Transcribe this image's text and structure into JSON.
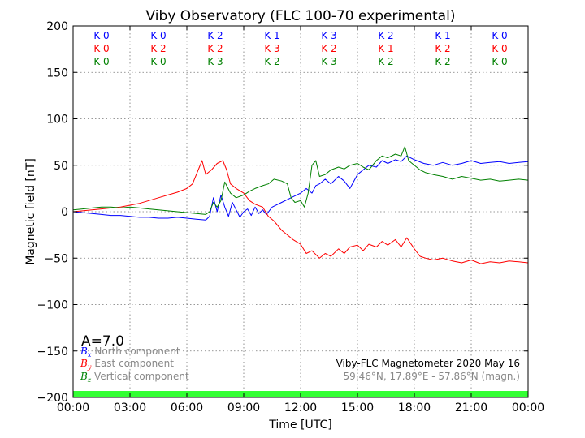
{
  "chart_data": {
    "type": "line",
    "title": "Viby Observatory (FLC 100-70 experimental)",
    "xlabel": "Time [UTC]",
    "ylabel": "Magnetic field [nT]",
    "xlim": [
      0,
      24
    ],
    "ylim": [
      -200,
      200
    ],
    "x_tick_labels": [
      "00:00",
      "03:00",
      "06:00",
      "09:00",
      "12:00",
      "15:00",
      "18:00",
      "21:00",
      "00:00"
    ],
    "y_ticks": [
      -200,
      -150,
      -100,
      -50,
      0,
      50,
      100,
      150,
      200
    ],
    "y_tick_labels": [
      "−200",
      "−150",
      "−100",
      "−50",
      "0",
      "50",
      "100",
      "150",
      "200"
    ],
    "grid": true,
    "k_indices": {
      "labels": [
        [
          "K 0",
          "K 0",
          "K 2",
          "K 1",
          "K 3",
          "K 2",
          "K 1",
          "K 0"
        ],
        [
          "K 0",
          "K 2",
          "K 2",
          "K 3",
          "K 2",
          "K 1",
          "K 2",
          "K 0"
        ],
        [
          "K 0",
          "K 0",
          "K 3",
          "K 2",
          "K 3",
          "K 2",
          "K 2",
          "K 0"
        ]
      ]
    },
    "a_index_label": "A=7.0",
    "legend": {
      "placement": "bottom-left",
      "entries": [
        {
          "symbol": "B",
          "sub": "x",
          "text": "North component"
        },
        {
          "symbol": "B",
          "sub": "y",
          "text": "East component"
        },
        {
          "symbol": "B",
          "sub": "z",
          "text": "Vertical component"
        }
      ]
    },
    "info_line1": "Viby-FLC Magnetometer 2020 May 16",
    "info_line2": "59.46°N, 17.89°E - 57.86°N (magn.)",
    "series": [
      {
        "name": "North component",
        "color": "#0000ff",
        "x": [
          0,
          0.5,
          1,
          1.5,
          2,
          2.5,
          3,
          3.5,
          4,
          4.5,
          5,
          5.5,
          6,
          6.5,
          7,
          7.2,
          7.4,
          7.6,
          7.8,
          8,
          8.2,
          8.4,
          8.6,
          8.8,
          9,
          9.2,
          9.4,
          9.6,
          9.8,
          10,
          10.2,
          10.5,
          11,
          11.5,
          12,
          12.3,
          12.6,
          12.8,
          13,
          13.3,
          13.6,
          14,
          14.3,
          14.6,
          15,
          15.3,
          15.6,
          16,
          16.3,
          16.6,
          17,
          17.3,
          17.6,
          18,
          18.5,
          19,
          19.5,
          20,
          20.5,
          21,
          21.5,
          22,
          22.5,
          23,
          23.5,
          24
        ],
        "values": [
          0,
          -1,
          -2,
          -3,
          -4,
          -4,
          -5,
          -6,
          -6,
          -7,
          -7,
          -6,
          -7,
          -8,
          -9,
          -5,
          15,
          0,
          18,
          5,
          -5,
          10,
          2,
          -6,
          0,
          3,
          -4,
          5,
          -2,
          2,
          -3,
          5,
          10,
          15,
          20,
          25,
          20,
          28,
          30,
          35,
          30,
          38,
          33,
          25,
          40,
          45,
          50,
          48,
          55,
          52,
          56,
          54,
          60,
          56,
          52,
          50,
          53,
          50,
          52,
          55,
          52,
          53,
          54,
          52,
          53,
          54
        ]
      },
      {
        "name": "East component",
        "color": "#ff0000",
        "x": [
          0,
          0.5,
          1,
          1.5,
          2,
          2.5,
          3,
          3.5,
          4,
          4.5,
          5,
          5.5,
          6,
          6.3,
          6.5,
          6.8,
          7,
          7.3,
          7.6,
          7.9,
          8.1,
          8.3,
          8.6,
          9,
          9.3,
          9.6,
          10,
          10.3,
          10.6,
          11,
          11.3,
          11.6,
          12,
          12.3,
          12.6,
          13,
          13.3,
          13.6,
          14,
          14.3,
          14.6,
          15,
          15.3,
          15.6,
          16,
          16.3,
          16.6,
          17,
          17.3,
          17.6,
          18,
          18.3,
          18.6,
          19,
          19.5,
          20,
          20.5,
          21,
          21.5,
          22,
          22.5,
          23,
          23.5,
          24
        ],
        "values": [
          0,
          1,
          2,
          3,
          4,
          5,
          7,
          9,
          12,
          15,
          18,
          21,
          25,
          30,
          40,
          55,
          40,
          45,
          52,
          55,
          45,
          30,
          25,
          20,
          12,
          8,
          5,
          -5,
          -10,
          -20,
          -25,
          -30,
          -35,
          -45,
          -42,
          -50,
          -45,
          -48,
          -40,
          -45,
          -38,
          -36,
          -42,
          -35,
          -38,
          -32,
          -36,
          -30,
          -38,
          -28,
          -40,
          -48,
          -50,
          -52,
          -50,
          -53,
          -55,
          -52,
          -56,
          -54,
          -55,
          -53,
          -54,
          -55
        ]
      },
      {
        "name": "Vertical component",
        "color": "#008000",
        "x": [
          0,
          0.5,
          1,
          1.5,
          2,
          2.5,
          3,
          3.5,
          4,
          4.5,
          5,
          5.5,
          6,
          6.5,
          7,
          7.2,
          7.4,
          7.6,
          7.8,
          8,
          8.3,
          8.6,
          9,
          9.3,
          9.6,
          10,
          10.3,
          10.6,
          11,
          11.3,
          11.5,
          11.7,
          12,
          12.2,
          12.4,
          12.6,
          12.8,
          13,
          13.3,
          13.6,
          14,
          14.3,
          14.6,
          15,
          15.3,
          15.6,
          16,
          16.3,
          16.6,
          17,
          17.3,
          17.5,
          17.7,
          18,
          18.3,
          18.6,
          19,
          19.5,
          20,
          20.5,
          21,
          21.5,
          22,
          22.5,
          23,
          23.5,
          24
        ],
        "values": [
          2,
          3,
          4,
          5,
          5,
          4,
          5,
          4,
          3,
          2,
          1,
          0,
          -1,
          -2,
          -3,
          0,
          10,
          5,
          12,
          32,
          20,
          15,
          18,
          22,
          25,
          28,
          30,
          35,
          33,
          30,
          15,
          10,
          12,
          5,
          20,
          50,
          55,
          38,
          40,
          45,
          48,
          46,
          50,
          52,
          48,
          45,
          55,
          60,
          58,
          62,
          60,
          70,
          55,
          50,
          45,
          42,
          40,
          38,
          35,
          38,
          36,
          34,
          35,
          33,
          34,
          35,
          34
        ]
      }
    ]
  }
}
